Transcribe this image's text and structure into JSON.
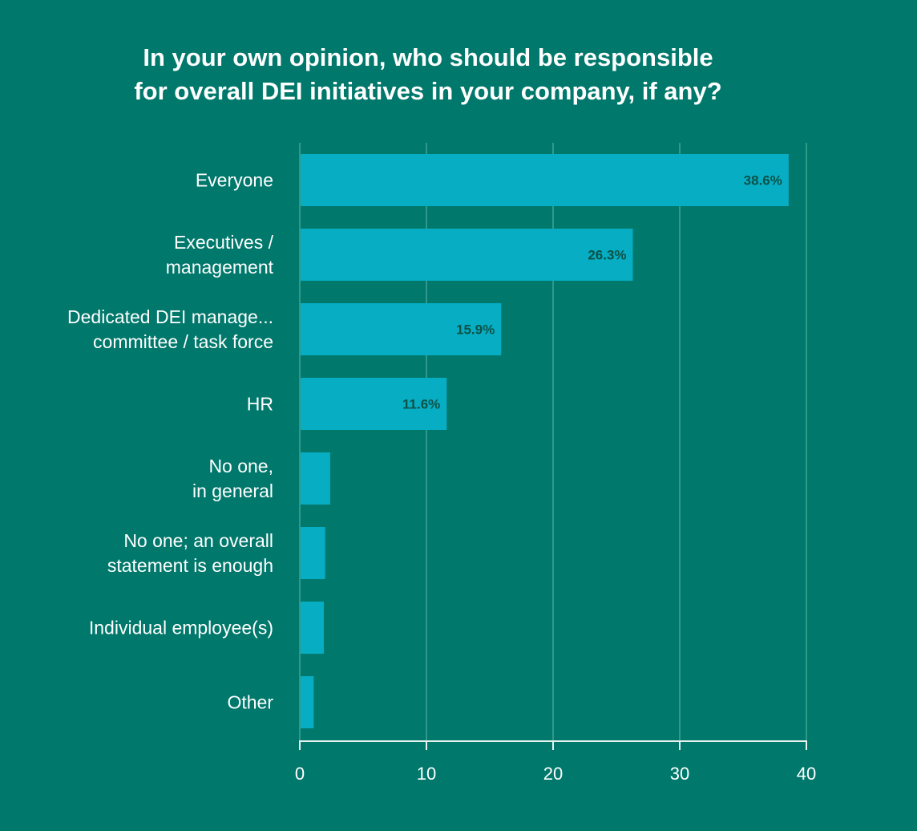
{
  "chart_data": {
    "type": "bar",
    "orientation": "horizontal",
    "title_lines": [
      "In your own opinion, who should be responsible",
      "for overall DEI initiatives in your company, if any?"
    ],
    "categories": [
      [
        "Everyone"
      ],
      [
        "Executives /",
        "management"
      ],
      [
        "Dedicated DEI manage...",
        "committee / task force"
      ],
      [
        "HR"
      ],
      [
        "No one,",
        "in general"
      ],
      [
        "No one; an overall",
        "statement is enough"
      ],
      [
        "Individual employee(s)"
      ],
      [
        "Other"
      ]
    ],
    "values": [
      38.6,
      26.3,
      15.9,
      11.6,
      2.4,
      2.0,
      1.9,
      1.1
    ],
    "data_labels": [
      "38.6%",
      "26.3%",
      "15.9%",
      "11.6%",
      "",
      "",
      "",
      ""
    ],
    "xlim": [
      0,
      40
    ],
    "x_ticks": [
      0,
      10,
      20,
      30,
      40
    ],
    "grid": true,
    "colors": {
      "background": "#00786b",
      "bar": "#06adc3",
      "grid": "#2f998c",
      "axis": "#e6f2f0",
      "data_label": "#0c5247"
    }
  }
}
